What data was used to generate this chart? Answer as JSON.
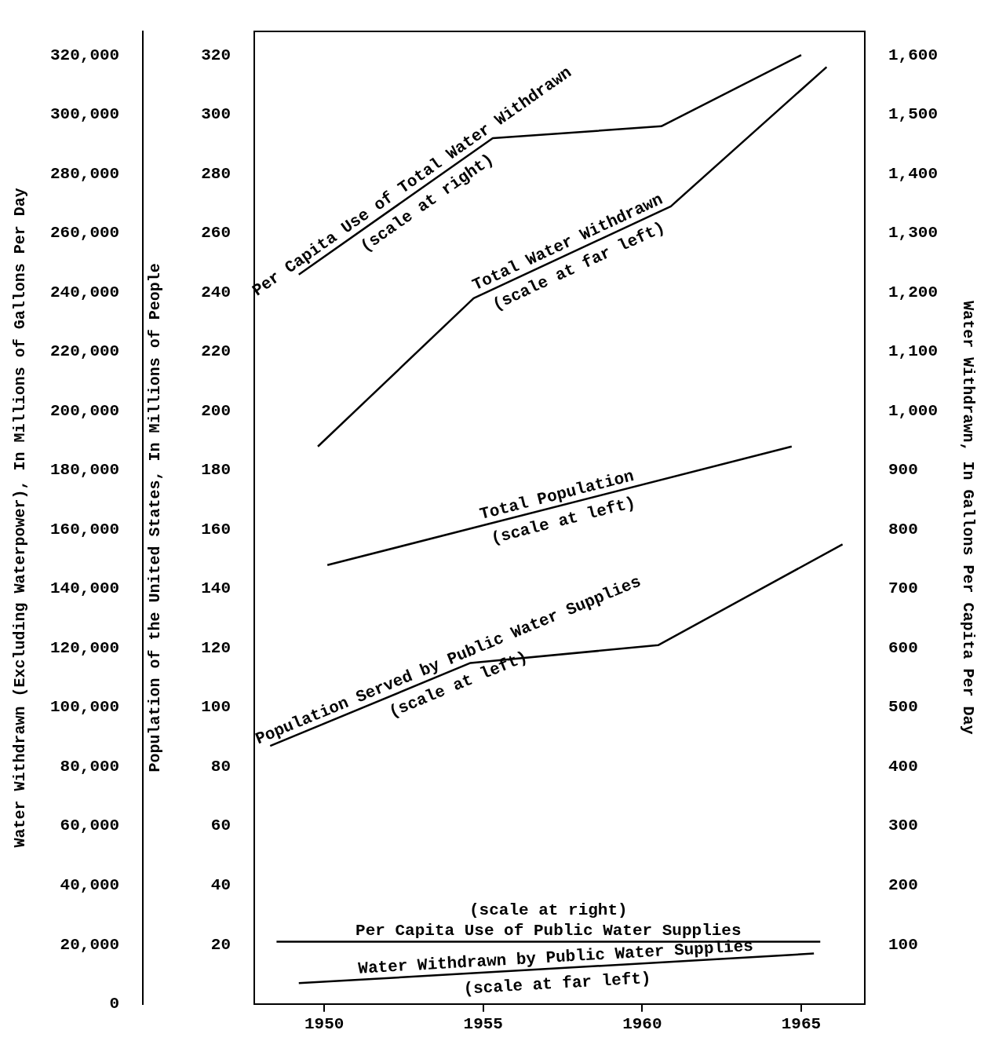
{
  "chart_data": {
    "type": "line",
    "xlim": [
      1947.8,
      1967
    ],
    "xticks": [
      1950,
      1955,
      1960,
      1965
    ],
    "ylabel": "Population of the United States, In Millions of People",
    "ylim": [
      0,
      328
    ],
    "yticks": [
      20,
      40,
      60,
      80,
      100,
      120,
      140,
      160,
      180,
      200,
      220,
      240,
      260,
      280,
      300,
      320
    ],
    "y2label": "Water Withdrawn, In Gallons Per Capita Per Day",
    "y2lim": [
      0,
      1640
    ],
    "y2ticks": [
      100,
      200,
      300,
      400,
      500,
      600,
      700,
      800,
      900,
      {
        "value": 1000,
        "label": "1,000"
      },
      {
        "value": 1100,
        "label": "1,100"
      },
      {
        "value": 1200,
        "label": "1,200"
      },
      {
        "value": 1300,
        "label": "1,300"
      },
      {
        "value": 1400,
        "label": "1,400"
      },
      {
        "value": 1500,
        "label": "1,500"
      },
      {
        "value": 1600,
        "label": "1,600"
      }
    ],
    "y3label": "Water Withdrawn (Excluding Waterpower), In Millions of Gallons Per Day",
    "y3lim": [
      0,
      328000
    ],
    "y3ticks": [
      0,
      {
        "value": 20000,
        "label": "20,000"
      },
      {
        "value": 40000,
        "label": "40,000"
      },
      {
        "value": 60000,
        "label": "60,000"
      },
      {
        "value": 80000,
        "label": "80,000"
      },
      {
        "value": 100000,
        "label": "100,000"
      },
      {
        "value": 120000,
        "label": "120,000"
      },
      {
        "value": 140000,
        "label": "140,000"
      },
      {
        "value": 160000,
        "label": "160,000"
      },
      {
        "value": 180000,
        "label": "180,000"
      },
      {
        "value": 200000,
        "label": "200,000"
      },
      {
        "value": 220000,
        "label": "220,000"
      },
      {
        "value": 240000,
        "label": "240,000"
      },
      {
        "value": 260000,
        "label": "260,000"
      },
      {
        "value": 280000,
        "label": "280,000"
      },
      {
        "value": 300000,
        "label": "300,000"
      },
      {
        "value": 320000,
        "label": "320,000"
      }
    ],
    "marker": "none",
    "line_style": "solid",
    "series": [
      {
        "name": "Per Capita Use of Total Water Withdrawn",
        "color": "#000000",
        "axis": "y2",
        "x": [
          1949.2,
          1955.3,
          1960.6,
          1965
        ],
        "values": [
          1230,
          1460,
          1480,
          1600
        ]
      },
      {
        "name": "Total Water Withdrawn",
        "color": "#000000",
        "axis": "y3",
        "x": [
          1949.8,
          1954.7,
          1960.9,
          1965.8
        ],
        "values": [
          188000,
          238000,
          269000,
          316000
        ]
      },
      {
        "name": "Total Population",
        "color": "#000000",
        "axis": "y",
        "x": [
          1950.1,
          1964.7
        ],
        "values": [
          148,
          188
        ]
      },
      {
        "name": "Population Served by Public Water Supplies",
        "color": "#000000",
        "axis": "y",
        "x": [
          1948.3,
          1954.6,
          1960.5,
          1966.3
        ],
        "values": [
          87,
          115,
          121,
          155
        ]
      },
      {
        "name": "Per Capita Use of Public Water Supplies",
        "color": "#000000",
        "axis": "y2",
        "x": [
          1948.5,
          1965.6
        ],
        "values": [
          105,
          105
        ]
      },
      {
        "name": "Water Withdrawn by Public Water Supplies",
        "color": "#000000",
        "axis": "y3",
        "x": [
          1949.2,
          1965.4
        ],
        "values": [
          7000,
          17000
        ]
      }
    ],
    "annotations": [
      "(scale at right)",
      "(scale at far left)",
      "(scale at left)",
      "(scale at left)",
      "(scale at right)",
      "(scale at far left)"
    ]
  }
}
